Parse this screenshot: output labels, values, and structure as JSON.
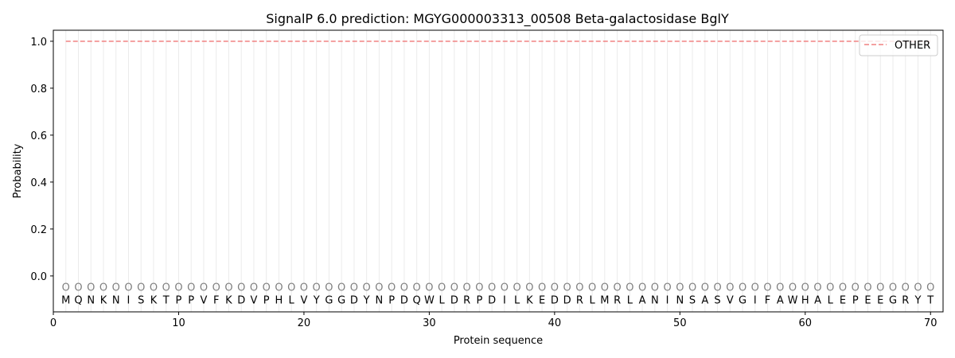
{
  "chart_data": {
    "type": "line",
    "title": "SignalP 6.0 prediction: MGYG000003313_00508 Beta-galactosidase BglY",
    "xlabel": "Protein sequence",
    "ylabel": "Probability",
    "xlim": [
      0,
      71
    ],
    "ylim": [
      -0.153,
      1.047
    ],
    "xticks": [
      0,
      10,
      20,
      30,
      40,
      50,
      60,
      70
    ],
    "yticks": [
      0.0,
      0.2,
      0.4,
      0.6,
      0.8,
      1.0
    ],
    "ytick_labels": [
      "0.0",
      "0.2",
      "0.4",
      "0.6",
      "0.8",
      "1.0"
    ],
    "grid": "vertical lines at each residue",
    "legend_position": "top-right",
    "sequence": "MQNKNISKTPPVFKDVPHLVYGGDYNPDQWLDRPDILKEDDRLMRLANINSASVGIFAWHALEPEEGRYT",
    "predicted_label": "O",
    "series": [
      {
        "name": "OTHER",
        "color": "#f08080",
        "style": "dashed",
        "x_start": 1,
        "x_end": 70,
        "value": 1.0
      }
    ]
  }
}
